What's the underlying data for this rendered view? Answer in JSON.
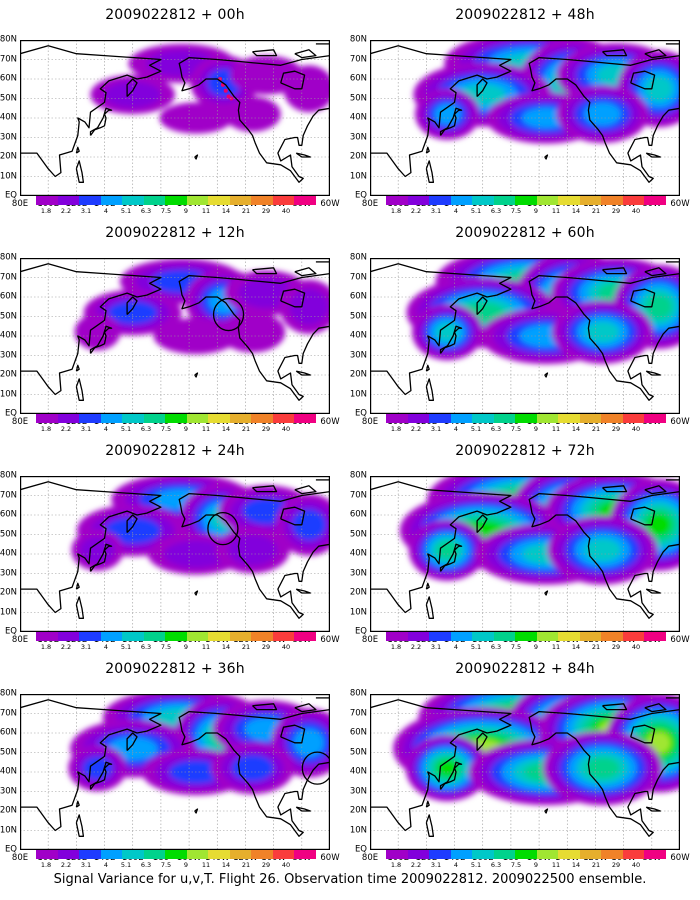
{
  "panels": [
    {
      "title": "2009022812 + 00h",
      "hours": 0,
      "circle": null
    },
    {
      "title": "2009022812 + 48h",
      "hours": 48,
      "circle": null
    },
    {
      "title": "2009022812 + 12h",
      "hours": 12,
      "circle": {
        "lon": 228,
        "lat": 51
      }
    },
    {
      "title": "2009022812 + 60h",
      "hours": 60,
      "circle": null
    },
    {
      "title": "2009022812 + 24h",
      "hours": 24,
      "circle": {
        "lon": 224,
        "lat": 53
      }
    },
    {
      "title": "2009022812 + 72h",
      "hours": 72,
      "circle": null
    },
    {
      "title": "2009022812 + 36h",
      "hours": 36,
      "circle": {
        "lon": 291,
        "lat": 42
      }
    },
    {
      "title": "2009022812 + 84h",
      "hours": 84,
      "circle": null
    }
  ],
  "map": {
    "lon_range": [
      80,
      300
    ],
    "lat_range": [
      0,
      80
    ],
    "x_tick_labels": [
      "80E",
      "100E",
      "120E",
      "140E",
      "160E",
      "180",
      "160W",
      "140W",
      "120W",
      "100W",
      "80W",
      "60W"
    ],
    "y_tick_labels": [
      "80N",
      "70N",
      "60N",
      "50N",
      "40N",
      "30N",
      "20N",
      "10N",
      "EQ"
    ]
  },
  "colorbar": {
    "labels": [
      "1.8",
      "2.2",
      "3.1",
      "4",
      "5.1",
      "6.3",
      "7.5",
      "9",
      "11",
      "14",
      "21",
      "29",
      "40"
    ],
    "colors": [
      "#a000c8",
      "#8200dc",
      "#1e3cff",
      "#00a0ff",
      "#00c8c8",
      "#00d28c",
      "#00dc00",
      "#a0e632",
      "#e6dc32",
      "#e6af2d",
      "#f08228",
      "#fa3c3c",
      "#f00082"
    ]
  },
  "footer": "Signal Variance for u,v,T. Flight 26. Observation time 2009022812. 2009022500 ensemble."
}
